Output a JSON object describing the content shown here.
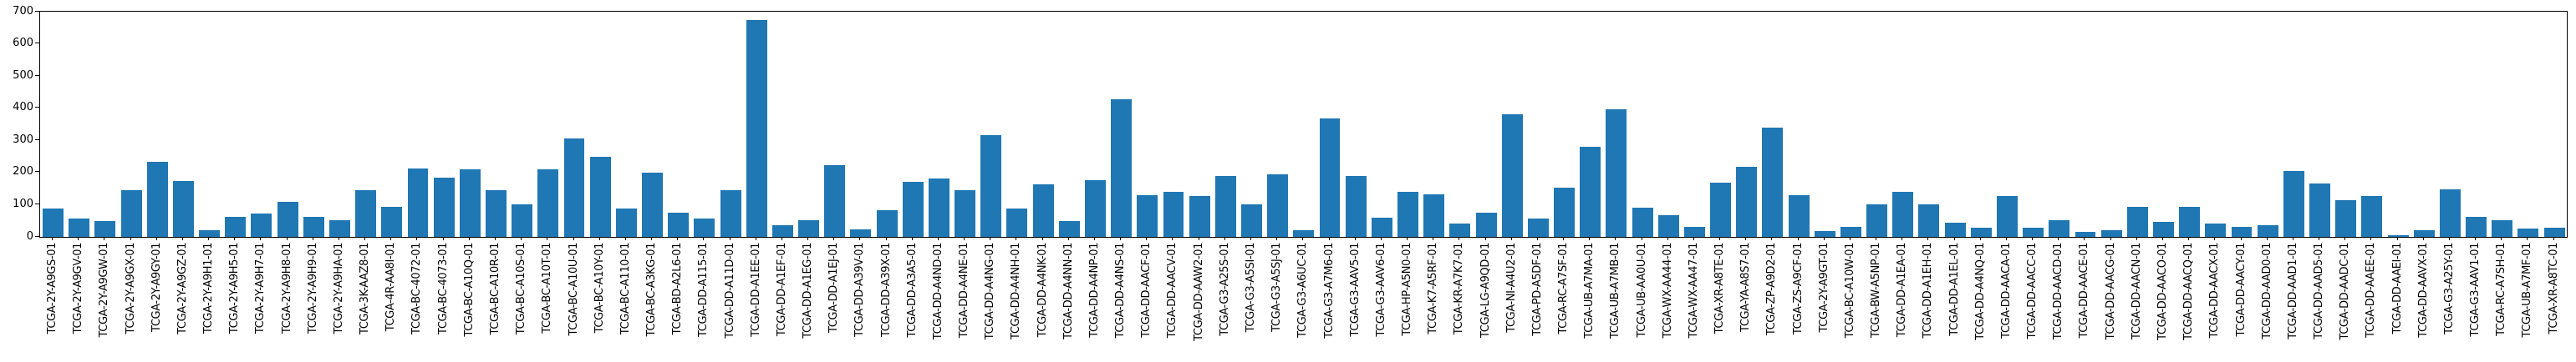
{
  "chart_data": {
    "type": "bar",
    "title": "",
    "xlabel": "",
    "ylabel": "",
    "ylim": [
      0,
      700
    ],
    "yticks": [
      0,
      100,
      200,
      300,
      400,
      500,
      600,
      700
    ],
    "grid": false,
    "legend": null,
    "bar_color": "#1f77b4",
    "axis_color": "#000000",
    "background_color": "#ffffff",
    "x_tick_rotation_degrees": 90,
    "categories": [
      "TCGA-2Y-A9GS-01",
      "TCGA-2Y-A9GV-01",
      "TCGA-2Y-A9GW-01",
      "TCGA-2Y-A9GX-01",
      "TCGA-2Y-A9GY-01",
      "TCGA-2Y-A9GZ-01",
      "TCGA-2Y-A9H1-01",
      "TCGA-2Y-A9H5-01",
      "TCGA-2Y-A9H7-01",
      "TCGA-2Y-A9H8-01",
      "TCGA-2Y-A9H9-01",
      "TCGA-2Y-A9HA-01",
      "TCGA-3K-AAZ8-01",
      "TCGA-4R-AA8I-01",
      "TCGA-BC-4072-01",
      "TCGA-BC-4073-01",
      "TCGA-BC-A10Q-01",
      "TCGA-BC-A10R-01",
      "TCGA-BC-A10S-01",
      "TCGA-BC-A10T-01",
      "TCGA-BC-A10U-01",
      "TCGA-BC-A10Y-01",
      "TCGA-BC-A110-01",
      "TCGA-BC-A3KG-01",
      "TCGA-BD-A2L6-01",
      "TCGA-DD-A115-01",
      "TCGA-DD-A11D-01",
      "TCGA-DD-A1EE-01",
      "TCGA-DD-A1EF-01",
      "TCGA-DD-A1EG-01",
      "TCGA-DD-A1EJ-01",
      "TCGA-DD-A39V-01",
      "TCGA-DD-A39X-01",
      "TCGA-DD-A3A5-01",
      "TCGA-DD-A4ND-01",
      "TCGA-DD-A4NE-01",
      "TCGA-DD-A4NG-01",
      "TCGA-DD-A4NH-01",
      "TCGA-DD-A4NK-01",
      "TCGA-DD-A4NN-01",
      "TCGA-DD-A4NP-01",
      "TCGA-DD-A4NS-01",
      "TCGA-DD-AACF-01",
      "TCGA-DD-AACV-01",
      "TCGA-DD-AAW2-01",
      "TCGA-G3-A25S-01",
      "TCGA-G3-A5SI-01",
      "TCGA-G3-A5SJ-01",
      "TCGA-G3-A6UC-01",
      "TCGA-G3-A7M6-01",
      "TCGA-G3-AAV5-01",
      "TCGA-G3-AAV6-01",
      "TCGA-HP-A5N0-01",
      "TCGA-K7-A5RF-01",
      "TCGA-KR-A7K7-01",
      "TCGA-LG-A9QD-01",
      "TCGA-NI-A4U2-01",
      "TCGA-PD-A5DF-01",
      "TCGA-RC-A7SF-01",
      "TCGA-UB-A7MA-01",
      "TCGA-UB-A7MB-01",
      "TCGA-UB-AA0U-01",
      "TCGA-WX-AA44-01",
      "TCGA-WX-AA47-01",
      "TCGA-XR-A8TE-01",
      "TCGA-YA-A8S7-01",
      "TCGA-ZP-A9D2-01",
      "TCGA-ZS-A9CF-01",
      "TCGA-2Y-A9GT-01",
      "TCGA-BC-A10W-01",
      "TCGA-BW-A5NP-01",
      "TCGA-DD-A1EA-01",
      "TCGA-DD-A1EH-01",
      "TCGA-DD-A1EL-01",
      "TCGA-DD-A4NQ-01",
      "TCGA-DD-AACA-01",
      "TCGA-DD-AACC-01",
      "TCGA-DD-AACD-01",
      "TCGA-DD-AACE-01",
      "TCGA-DD-AACG-01",
      "TCGA-DD-AACN-01",
      "TCGA-DD-AACO-01",
      "TCGA-DD-AACQ-01",
      "TCGA-DD-AACX-01",
      "TCGA-DD-AACY-01",
      "TCGA-DD-AAD0-01",
      "TCGA-DD-AAD1-01",
      "TCGA-DD-AAD5-01",
      "TCGA-DD-AADC-01",
      "TCGA-DD-AAEE-01",
      "TCGA-DD-AAEI-01",
      "TCGA-DD-AAVX-01",
      "TCGA-G3-A25Y-01",
      "TCGA-G3-AAV1-01",
      "TCGA-RC-A7SH-01",
      "TCGA-UB-A7MF-01",
      "TCGA-XR-A8TC-01"
    ],
    "values": [
      89,
      56,
      50,
      144,
      234,
      174,
      20,
      63,
      72,
      109,
      63,
      53,
      146,
      94,
      213,
      185,
      211,
      146,
      100,
      209,
      305,
      250,
      89,
      200,
      75,
      56,
      146,
      673,
      37,
      53,
      224,
      23,
      82,
      172,
      182,
      146,
      317,
      89,
      163,
      50,
      176,
      428,
      130,
      140,
      127,
      189,
      101,
      194,
      20,
      369,
      189,
      59,
      141,
      133,
      42,
      76,
      380,
      57,
      153,
      279,
      398,
      91,
      68,
      30,
      168,
      218,
      340,
      130,
      17,
      31,
      102,
      139,
      100,
      43,
      29,
      127,
      29,
      52,
      16,
      20,
      94,
      46,
      94,
      42,
      30,
      36,
      206,
      167,
      115,
      128,
      5,
      20,
      148,
      61,
      52,
      26,
      28
    ]
  }
}
